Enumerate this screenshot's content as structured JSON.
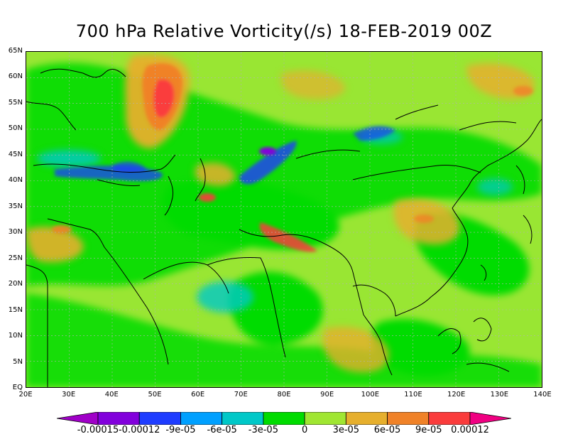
{
  "title": "700 hPa Relative Vorticity(/s) 18-FEB-2019 00Z",
  "map": {
    "lat_labels": [
      "65N",
      "60N",
      "55N",
      "50N",
      "45N",
      "40N",
      "35N",
      "30N",
      "25N",
      "20N",
      "15N",
      "10N",
      "5N",
      "EQ"
    ],
    "lat_values": [
      65,
      60,
      55,
      50,
      45,
      40,
      35,
      30,
      25,
      20,
      15,
      10,
      5,
      0
    ],
    "lon_labels": [
      "20E",
      "30E",
      "40E",
      "50E",
      "60E",
      "70E",
      "80E",
      "90E",
      "100E",
      "110E",
      "120E",
      "130E",
      "140E"
    ],
    "lon_values": [
      20,
      30,
      40,
      50,
      60,
      70,
      80,
      90,
      100,
      110,
      120,
      130,
      140
    ],
    "lat_range": [
      0,
      65
    ],
    "lon_range": [
      20,
      140
    ],
    "background_color": "#99e633",
    "coastline_color": "#000000",
    "gridline_color": "#b3b3b3"
  },
  "colorbar": {
    "labels": [
      "-0.00015",
      "-0.00012",
      "-9e-05",
      "-6e-05",
      "-3e-05",
      "0",
      "3e-05",
      "6e-05",
      "9e-05",
      "0.00012"
    ],
    "colors": [
      "#a000c8",
      "#8200dc",
      "#1e3cff",
      "#00a0ff",
      "#00c8c8",
      "#00dc00",
      "#a0e632",
      "#e6af2d",
      "#f08228",
      "#fa3c3c",
      "#f00082"
    ]
  }
}
